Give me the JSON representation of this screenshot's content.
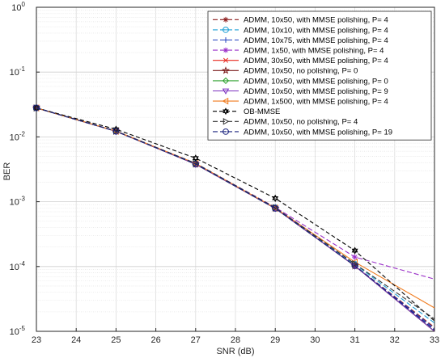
{
  "chart_data": {
    "type": "line",
    "xlabel": "SNR (dB)",
    "ylabel": "BER",
    "xlim": [
      23,
      33
    ],
    "ylim": [
      1e-05,
      1
    ],
    "yscale": "log",
    "grid": true,
    "legend_position": "top-right",
    "x_ticks": [
      "23",
      "24",
      "25",
      "26",
      "27",
      "28",
      "29",
      "30",
      "31",
      "32",
      "33"
    ],
    "y_tick_labels": [
      {
        "exp": -5,
        "base": "10",
        "sup": "-5"
      },
      {
        "exp": -4,
        "base": "10",
        "sup": "-4"
      },
      {
        "exp": -3,
        "base": "10",
        "sup": "-3"
      },
      {
        "exp": -2,
        "base": "10",
        "sup": "-2"
      },
      {
        "exp": -1,
        "base": "10",
        "sup": "-1"
      },
      {
        "exp": 0,
        "base": "10",
        "sup": "0"
      }
    ],
    "series": [
      {
        "name": "ADMM, 10x50, with MMSE polishing, P= 4",
        "color": "#8B1A1A",
        "dash": "6,3",
        "marker": "asterisk",
        "x": [
          23,
          25,
          27,
          29,
          31,
          33
        ],
        "y": [
          0.028,
          0.0122,
          0.0038,
          0.00079,
          0.000103,
          1.15e-05
        ]
      },
      {
        "name": "ADMM, 10x10, with MMSE polishing, P= 4",
        "color": "#1f9fd6",
        "dash": "6,3",
        "marker": "circle-line",
        "x": [
          23,
          25,
          27,
          29,
          31,
          33
        ],
        "y": [
          0.028,
          0.0123,
          0.0039,
          0.00081,
          0.000108,
          1.35e-05
        ]
      },
      {
        "name": "ADMM, 10x75, with MMSE polishing, P= 4",
        "color": "#1f3fbf",
        "dash": "6,3",
        "marker": "plus",
        "x": [
          23,
          25,
          27,
          29,
          31,
          33
        ],
        "y": [
          0.028,
          0.0122,
          0.0038,
          0.00079,
          0.000103,
          1.1e-05
        ]
      },
      {
        "name": "ADMM, 1x50, with MMSE polishing, P= 4",
        "color": "#9b30c9",
        "dash": "6,3",
        "marker": "asterisk",
        "x": [
          23,
          25,
          27,
          29,
          31,
          33
        ],
        "y": [
          0.028,
          0.0123,
          0.0039,
          0.00082,
          0.00014,
          6.4e-05
        ]
      },
      {
        "name": "ADMM, 30x50, with MMSE polishing, P= 4",
        "color": "#e8281e",
        "dash": "",
        "marker": "x",
        "x": [
          23,
          25,
          27,
          29,
          31,
          33
        ],
        "y": [
          0.028,
          0.0122,
          0.0038,
          0.00079,
          0.000102,
          1e-05
        ]
      },
      {
        "name": "ADMM, 10x50, no polishing, P= 0",
        "color": "#7a1a1a",
        "dash": "",
        "marker": "star",
        "x": [
          23,
          25,
          27,
          29,
          31,
          33
        ],
        "y": [
          0.028,
          0.0122,
          0.0038,
          0.00079,
          0.000102,
          1e-05
        ]
      },
      {
        "name": "ADMM, 10x50, with MMSE polishing, P= 0",
        "color": "#2ca02c",
        "dash": "",
        "marker": "diamond",
        "x": [
          23,
          25,
          27,
          29,
          31,
          33
        ],
        "y": [
          0.028,
          0.0122,
          0.0038,
          0.00079,
          0.000102,
          1e-05
        ]
      },
      {
        "name": "ADMM, 10x50, with MMSE polishing, P= 9",
        "color": "#7b2fbf",
        "dash": "",
        "marker": "triangle-down",
        "x": [
          23,
          25,
          27,
          29,
          31,
          33
        ],
        "y": [
          0.028,
          0.0122,
          0.0038,
          0.00079,
          0.000102,
          1e-05
        ]
      },
      {
        "name": "ADMM, 1x500, with MMSE polishing, P= 4",
        "color": "#f07b1e",
        "dash": "",
        "marker": "triangle-left",
        "x": [
          23,
          25,
          27,
          29,
          31,
          33
        ],
        "y": [
          0.028,
          0.0123,
          0.0039,
          0.0008,
          0.000117,
          2.3e-05
        ]
      },
      {
        "name": "OB-MMSE",
        "color": "#000000",
        "dash": "5,3",
        "marker": "hexagram",
        "x": [
          23,
          25,
          27,
          29,
          31,
          33
        ],
        "y": [
          0.028,
          0.0131,
          0.0047,
          0.00113,
          0.000176,
          1.45e-05
        ]
      },
      {
        "name": "ADMM, 10x50, no polishing, P= 4",
        "color": "#333333",
        "dash": "6,3",
        "marker": "triangle-right",
        "x": [
          23,
          25,
          27,
          29,
          31,
          33
        ],
        "y": [
          0.028,
          0.0123,
          0.0039,
          0.00081,
          0.00011,
          1.55e-05
        ]
      },
      {
        "name": "ADMM, 10x50, with MMSE polishing, P= 19",
        "color": "#1a237e",
        "dash": "6,3",
        "marker": "circle-dot",
        "x": [
          23,
          25,
          27,
          29,
          31,
          33
        ],
        "y": [
          0.028,
          0.0122,
          0.0038,
          0.00079,
          0.000103,
          1.05e-05
        ]
      }
    ]
  }
}
